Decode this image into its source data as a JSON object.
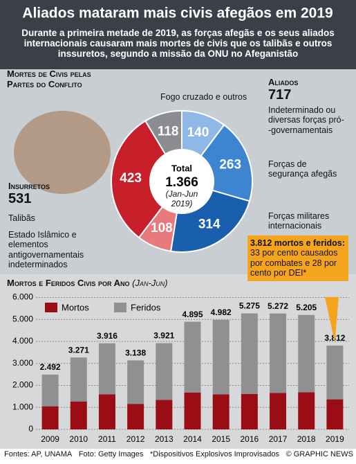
{
  "title": "Aliados mataram mais civis afegãos em 2019",
  "subtitle": "Durante a primeira metade de 2019, as forças afegãs e os seus aliados internacionais causaram mais mortes de civis que os talibãs e outros inssuretos, segundo a missão da ONU no Afeganistão",
  "chart_data": [
    {
      "type": "pie",
      "title": "Mortes de Civis pelas Partes do Conflito",
      "categories": [
        "Indeterminado ou diversas forças pró--governamentais",
        "Forças de segurança afegãs",
        "Forças militares internacionais",
        "Estado Islâmico e elementos antigovernamentais indeterminados",
        "Talibãs",
        "Fogo cruzado e outros"
      ],
      "values": [
        140,
        263,
        314,
        108,
        423,
        118
      ],
      "colors": [
        "#8fb8e6",
        "#3d85d1",
        "#1a5fae",
        "#e8797d",
        "#c8202b",
        "#8a8c8f"
      ],
      "groups": [
        {
          "name": "Aliados",
          "value": 717
        },
        {
          "name": "Insurretos",
          "value": 531
        }
      ],
      "total_title": "Total",
      "total": {
        "value": 1366,
        "label": "1.366"
      },
      "period": "(Jan-Jun 2019)"
    },
    {
      "type": "bar",
      "title": "Mortos e Feridos Civis por Ano",
      "title_note": "(Jan-Jun)",
      "categories": [
        "2009",
        "2010",
        "2011",
        "2012",
        "2013",
        "2014",
        "2015",
        "2016",
        "2017",
        "2018",
        "2019"
      ],
      "series": [
        {
          "name": "Mortos",
          "color": "#9b0d14",
          "values": [
            1050,
            1270,
            1590,
            1160,
            1340,
            1670,
            1590,
            1610,
            1660,
            1690,
            1366
          ]
        },
        {
          "name": "Feridos",
          "color": "#8e9092",
          "values": [
            1442,
            2001,
            2326,
            1978,
            2581,
            3225,
            3392,
            3665,
            3612,
            3515,
            2446
          ]
        }
      ],
      "totals": [
        2492,
        3271,
        3916,
        3138,
        3921,
        4895,
        4982,
        5275,
        5272,
        5205,
        3812
      ],
      "total_labels": [
        "2.492",
        "3.271",
        "3.916",
        "3.138",
        "3.921",
        "4.895",
        "4.982",
        "5.275",
        "5.272",
        "5.205",
        "3.812"
      ],
      "ylim": [
        0,
        6300
      ],
      "yticks": [
        {
          "value": 0,
          "label": "0"
        },
        {
          "value": 1000,
          "label": "1.000"
        },
        {
          "value": 2000,
          "label": "2.000"
        },
        {
          "value": 3000,
          "label": "3.000"
        },
        {
          "value": 4000,
          "label": "4.000"
        },
        {
          "value": 5000,
          "label": "5.000"
        },
        {
          "value": 6000,
          "label": "6.000"
        }
      ],
      "grid": true,
      "callout": {
        "title": "3.812 mortos e feridos:",
        "text": "33 por cento causados por combates e 28 por cento por DEI*"
      }
    }
  ],
  "footer": {
    "sources": "Fontes: AP, UNAMA",
    "photo": "Foto: Getty Images",
    "note": "*Dispositivos Explosivos Improvisados",
    "credit": "© GRAPHIC NEWS"
  }
}
